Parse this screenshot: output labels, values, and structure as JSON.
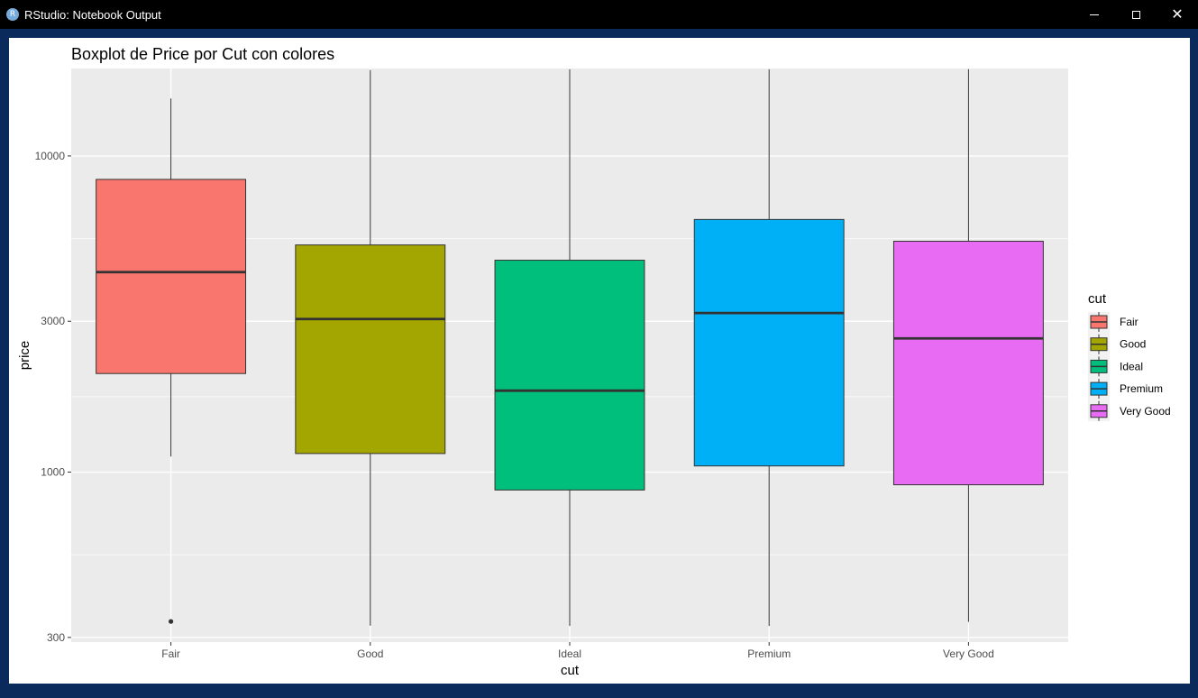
{
  "window": {
    "title": "RStudio: Notebook Output",
    "app_icon_letter": "R"
  },
  "chart_data": {
    "type": "boxplot",
    "title": "Boxplot de Price por Cut con colores",
    "xlabel": "cut",
    "ylabel": "price",
    "y_scale": "log10",
    "ylim": [
      290,
      18900
    ],
    "y_ticks": [
      300,
      1000,
      3000,
      10000
    ],
    "y_tick_labels": [
      "300",
      "1000",
      "3000",
      "10000"
    ],
    "categories": [
      "Fair",
      "Good",
      "Ideal",
      "Premium",
      "Very Good"
    ],
    "boxes": [
      {
        "cut": "Fair",
        "lower_whisker": 1120,
        "q1": 2050,
        "median": 4290,
        "q3": 8430,
        "upper_whisker": 15200,
        "outliers": [
          337
        ],
        "fill": "#F8766D"
      },
      {
        "cut": "Good",
        "lower_whisker": 327,
        "q1": 1145,
        "median": 3050,
        "q3": 5230,
        "upper_whisker": 18700,
        "outliers": [],
        "fill": "#A3A500"
      },
      {
        "cut": "Ideal",
        "lower_whisker": 326,
        "q1": 878,
        "median": 1810,
        "q3": 4680,
        "upper_whisker": 18800,
        "outliers": [],
        "fill": "#00BF7D"
      },
      {
        "cut": "Premium",
        "lower_whisker": 326,
        "q1": 1046,
        "median": 3185,
        "q3": 6296,
        "upper_whisker": 18800,
        "outliers": [],
        "fill": "#00B0F6"
      },
      {
        "cut": "Very Good",
        "lower_whisker": 336,
        "q1": 912,
        "median": 2648,
        "q3": 5373,
        "upper_whisker": 18818,
        "outliers": [],
        "fill": "#E76BF3"
      }
    ],
    "legend": {
      "title": "cut",
      "position": "right",
      "entries": [
        "Fair",
        "Good",
        "Ideal",
        "Premium",
        "Very Good"
      ],
      "colors": [
        "#F8766D",
        "#A3A500",
        "#00BF7D",
        "#00B0F6",
        "#E76BF3"
      ]
    },
    "grid": true,
    "panel_background": "#EBEBEB"
  }
}
